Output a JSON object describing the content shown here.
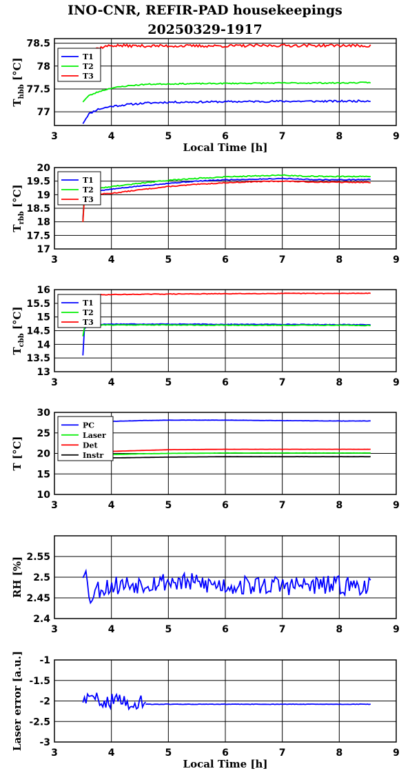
{
  "page": {
    "title_line1": "INO-CNR, REFIR-PAD housekeepings",
    "title_line2": "20250329-1917"
  },
  "chart_data": [
    {
      "id": "hbb",
      "type": "line",
      "ylabel": "T",
      "ylabel_sub": "hbb",
      "ylabel_unit": " [°C]",
      "xlabel": "Local Time [h]",
      "xlim": [
        3,
        9
      ],
      "ylim": [
        76.7,
        78.6
      ],
      "xticks": [
        3,
        4,
        5,
        6,
        7,
        8,
        9
      ],
      "yticks": [
        77,
        77.5,
        78,
        78.5
      ],
      "ytick_labels": [
        "77",
        "77.5",
        "78",
        "78.5"
      ],
      "grid": true,
      "legend": "top-left",
      "series": [
        {
          "name": "T1",
          "color": "#0000ff",
          "noise": 0.02,
          "seed": 11,
          "x": [
            3.5,
            3.6,
            3.75,
            4.0,
            4.3,
            4.6,
            5.0,
            6.0,
            7.0,
            8.0,
            8.55
          ],
          "y": [
            76.75,
            76.95,
            77.05,
            77.12,
            77.16,
            77.19,
            77.21,
            77.22,
            77.23,
            77.23,
            77.24
          ]
        },
        {
          "name": "T2",
          "color": "#00ee00",
          "noise": 0.012,
          "seed": 23,
          "x": [
            3.5,
            3.6,
            3.8,
            4.0,
            4.3,
            4.6,
            5.0,
            6.0,
            7.0,
            8.0,
            8.55
          ],
          "y": [
            77.22,
            77.35,
            77.45,
            77.52,
            77.57,
            77.6,
            77.61,
            77.62,
            77.63,
            77.63,
            77.64
          ]
        },
        {
          "name": "T3",
          "color": "#ff0000",
          "noise": 0.03,
          "seed": 37,
          "x": [
            3.5,
            3.7,
            3.9,
            4.0,
            4.5,
            5.0,
            6.0,
            7.0,
            8.0,
            8.55
          ],
          "y": [
            78.3,
            78.37,
            78.43,
            78.45,
            78.44,
            78.44,
            78.44,
            78.45,
            78.45,
            78.44
          ]
        }
      ]
    },
    {
      "id": "rbb",
      "type": "line",
      "ylabel": "T",
      "ylabel_sub": "rbb",
      "ylabel_unit": " [°C]",
      "xlabel": "",
      "xlim": [
        3,
        9
      ],
      "ylim": [
        17,
        20
      ],
      "xticks": [
        3,
        4,
        5,
        6,
        7,
        8,
        9
      ],
      "yticks": [
        17,
        17.5,
        18,
        18.5,
        19,
        19.5,
        20
      ],
      "ytick_labels": [
        "17",
        "17.5",
        "18",
        "18.5",
        "19",
        "19.5",
        "20"
      ],
      "grid": true,
      "legend": "top-left",
      "series": [
        {
          "name": "T1",
          "color": "#0000ff",
          "noise": 0.015,
          "seed": 5,
          "x": [
            3.5,
            3.52,
            3.6,
            4.0,
            4.5,
            5.0,
            5.5,
            6.0,
            6.5,
            7.0,
            7.5,
            8.0,
            8.55
          ],
          "y": [
            18.1,
            19.0,
            19.1,
            19.2,
            19.32,
            19.42,
            19.5,
            19.55,
            19.57,
            19.6,
            19.56,
            19.55,
            19.56
          ]
        },
        {
          "name": "T2",
          "color": "#00ee00",
          "noise": 0.018,
          "seed": 9,
          "x": [
            3.5,
            3.52,
            3.6,
            4.0,
            4.5,
            5.0,
            5.5,
            6.0,
            6.5,
            7.0,
            7.5,
            8.0,
            8.55
          ],
          "y": [
            18.0,
            19.1,
            19.2,
            19.3,
            19.42,
            19.53,
            19.6,
            19.66,
            19.69,
            19.72,
            19.68,
            19.67,
            19.68
          ]
        },
        {
          "name": "T3",
          "color": "#ff0000",
          "noise": 0.015,
          "seed": 13,
          "x": [
            3.5,
            3.52,
            3.6,
            4.0,
            4.5,
            5.0,
            5.5,
            6.0,
            6.5,
            7.0,
            7.5,
            8.0,
            8.55
          ],
          "y": [
            18.0,
            18.9,
            19.0,
            19.05,
            19.18,
            19.3,
            19.38,
            19.44,
            19.48,
            19.5,
            19.47,
            19.46,
            19.45
          ]
        }
      ]
    },
    {
      "id": "cbb",
      "type": "line",
      "ylabel": "T",
      "ylabel_sub": "cbb",
      "ylabel_unit": " [°C]",
      "xlabel": "",
      "xlim": [
        3,
        9
      ],
      "ylim": [
        13,
        16
      ],
      "xticks": [
        3,
        4,
        5,
        6,
        7,
        8,
        9
      ],
      "yticks": [
        13,
        13.5,
        14,
        14.5,
        15,
        15.5,
        16
      ],
      "ytick_labels": [
        "13",
        "13.5",
        "14",
        "14.5",
        "15",
        "15.5",
        "16"
      ],
      "grid": true,
      "legend": "top-left",
      "series": [
        {
          "name": "T1",
          "color": "#0000ff",
          "noise": 0.012,
          "seed": 17,
          "x": [
            3.5,
            3.52,
            3.6,
            4.0,
            5.0,
            6.0,
            7.0,
            8.0,
            8.55
          ],
          "y": [
            13.6,
            14.55,
            14.72,
            14.74,
            14.74,
            14.73,
            14.73,
            14.72,
            14.72
          ]
        },
        {
          "name": "T2",
          "color": "#00ee00",
          "noise": 0.012,
          "seed": 21,
          "x": [
            3.5,
            3.52,
            3.6,
            4.0,
            5.0,
            6.0,
            7.0,
            8.0,
            8.55
          ],
          "y": [
            14.3,
            14.6,
            14.7,
            14.71,
            14.71,
            14.7,
            14.7,
            14.7,
            14.69
          ]
        },
        {
          "name": "T3",
          "color": "#ff0000",
          "noise": 0.01,
          "seed": 29,
          "x": [
            3.5,
            3.6,
            4.0,
            5.0,
            6.0,
            7.0,
            8.0,
            8.55
          ],
          "y": [
            15.78,
            15.8,
            15.82,
            15.84,
            15.85,
            15.86,
            15.86,
            15.87
          ]
        }
      ]
    },
    {
      "id": "temps",
      "type": "line",
      "ylabel": "T [°C]",
      "ylabel_sub": "",
      "ylabel_unit": "",
      "xlabel": "",
      "xlim": [
        3,
        9
      ],
      "ylim": [
        10,
        30
      ],
      "xticks": [
        3,
        4,
        5,
        6,
        7,
        8,
        9
      ],
      "yticks": [
        10,
        15,
        20,
        25,
        30
      ],
      "ytick_labels": [
        "10",
        "15",
        "20",
        "25",
        "30"
      ],
      "grid": true,
      "legend": "top-left",
      "series": [
        {
          "name": "PC",
          "color": "#0000ff",
          "noise": 0.03,
          "seed": 31,
          "x": [
            3.5,
            4.0,
            4.5,
            5.0,
            6.0,
            7.0,
            8.0,
            8.55
          ],
          "y": [
            27.5,
            27.8,
            28.0,
            28.1,
            28.1,
            28.0,
            27.9,
            27.9
          ]
        },
        {
          "name": "Laser",
          "color": "#00ee00",
          "noise": 0.02,
          "seed": 41,
          "x": [
            3.5,
            4.0,
            4.5,
            5.0,
            6.0,
            7.0,
            8.0,
            8.55
          ],
          "y": [
            19.5,
            19.7,
            19.9,
            20.0,
            20.1,
            20.1,
            20.1,
            20.1
          ]
        },
        {
          "name": "Det",
          "color": "#ff0000",
          "noise": 0.01,
          "seed": 43,
          "x": [
            3.5,
            4.0,
            4.5,
            5.0,
            6.0,
            7.0,
            8.0,
            8.55
          ],
          "y": [
            20.3,
            20.5,
            20.7,
            20.9,
            21.0,
            21.0,
            21.0,
            21.0
          ]
        },
        {
          "name": "Instr",
          "color": "#000000",
          "noise": 0.005,
          "seed": 47,
          "x": [
            3.5,
            4.0,
            5.0,
            6.0,
            7.0,
            8.0,
            8.55
          ],
          "y": [
            18.7,
            18.9,
            19.1,
            19.2,
            19.2,
            19.2,
            19.2
          ]
        }
      ]
    },
    {
      "id": "rh",
      "type": "line",
      "ylabel": "RH [%]",
      "ylabel_sub": "",
      "ylabel_unit": "",
      "xlabel": "",
      "xlim": [
        3,
        9
      ],
      "ylim": [
        2.4,
        2.6
      ],
      "xticks": [
        3,
        4,
        5,
        6,
        7,
        8,
        9
      ],
      "yticks": [
        2.4,
        2.45,
        2.5,
        2.55
      ],
      "ytick_labels": [
        "2.4",
        "2.45",
        "2.5",
        "2.55"
      ],
      "grid": true,
      "legend": "none",
      "series": [
        {
          "name": "",
          "color": "#0000ff",
          "noise": 0.024,
          "seed": 53,
          "x": [
            3.5,
            3.55,
            3.6,
            3.7,
            4.0,
            5.0,
            6.0,
            7.0,
            8.0,
            8.55
          ],
          "y": [
            2.51,
            2.54,
            2.44,
            2.47,
            2.48,
            2.49,
            2.48,
            2.48,
            2.48,
            2.48
          ]
        }
      ]
    },
    {
      "id": "laser",
      "type": "line",
      "ylabel": "Laser error [a.u.]",
      "ylabel_sub": "",
      "ylabel_unit": "",
      "xlabel": "Local Time [h]",
      "xlim": [
        3,
        9
      ],
      "ylim": [
        -3,
        -1
      ],
      "xticks": [
        3,
        4,
        5,
        6,
        7,
        8,
        9
      ],
      "yticks": [
        -3,
        -2.5,
        -2,
        -1.5,
        -1
      ],
      "ytick_labels": [
        "-3",
        "-2.5",
        "-2",
        "-1.5",
        "-1"
      ],
      "grid": true,
      "legend": "none",
      "series": [
        {
          "name": "",
          "color": "#0000ff",
          "noise": 0.18,
          "seed": 59,
          "x": [
            3.5,
            4.6
          ],
          "y": [
            -1.95,
            -2.05
          ]
        },
        {
          "name": "",
          "color": "#0000ff",
          "noise": 0.006,
          "seed": 61,
          "x": [
            4.6,
            5.0,
            6.0,
            7.0,
            8.0,
            8.55
          ],
          "y": [
            -2.08,
            -2.08,
            -2.08,
            -2.08,
            -2.08,
            -2.08
          ]
        }
      ]
    }
  ]
}
